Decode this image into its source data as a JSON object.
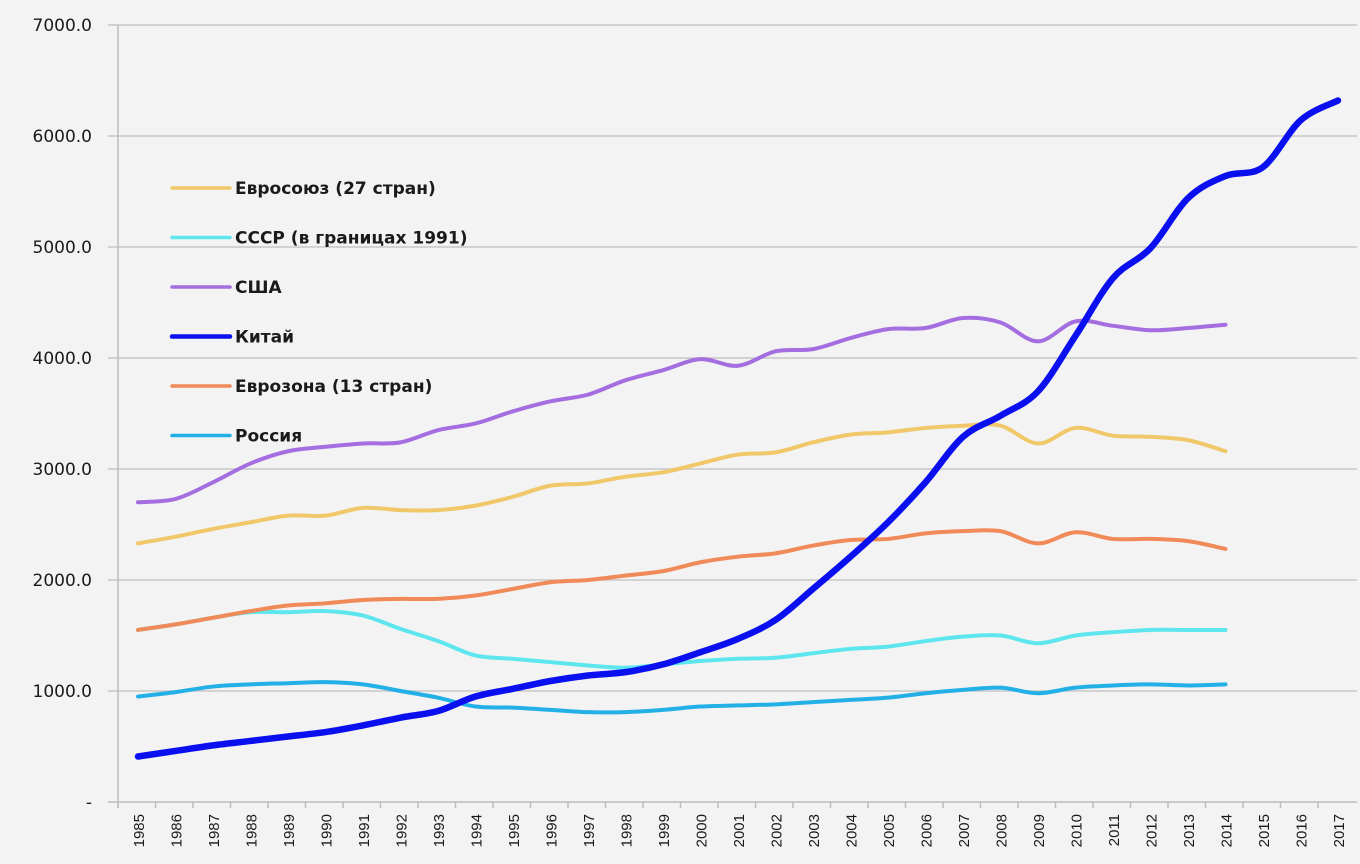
{
  "chart_data": {
    "type": "line",
    "title": "",
    "xlabel": "",
    "ylabel": "",
    "ylim": [
      0,
      7000
    ],
    "y_ticks": [
      "-",
      "1000.0",
      "2000.0",
      "3000.0",
      "4000.0",
      "5000.0",
      "6000.0",
      "7000.0"
    ],
    "y_tick_values": [
      0,
      1000,
      2000,
      3000,
      4000,
      5000,
      6000,
      7000
    ],
    "grid": "horizontal",
    "legend_position": "top-left inside",
    "x": [
      1985,
      1986,
      1987,
      1988,
      1989,
      1990,
      1991,
      1992,
      1993,
      1994,
      1995,
      1996,
      1997,
      1998,
      1999,
      2000,
      2001,
      2002,
      2003,
      2004,
      2005,
      2006,
      2007,
      2008,
      2009,
      2010,
      2011,
      2012,
      2013,
      2014,
      2015,
      2016,
      2017
    ],
    "series": [
      {
        "name": "Евросоюз (27 стран)",
        "color": "#f0c869",
        "values": [
          2330,
          2390,
          2460,
          2520,
          2580,
          2580,
          2650,
          2630,
          2630,
          2670,
          2750,
          2850,
          2870,
          2930,
          2970,
          3050,
          3130,
          3150,
          3240,
          3310,
          3330,
          3370,
          3390,
          3390,
          3230,
          3370,
          3300,
          3290,
          3260,
          3160,
          null,
          null,
          null
        ]
      },
      {
        "name": "СССР (в границах 1991)",
        "color": "#5ee6ee",
        "values": [
          1550,
          1600,
          1660,
          1710,
          1710,
          1720,
          1680,
          1560,
          1450,
          1320,
          1290,
          1260,
          1230,
          1210,
          1240,
          1270,
          1290,
          1300,
          1340,
          1380,
          1400,
          1450,
          1490,
          1500,
          1430,
          1500,
          1530,
          1550,
          1550,
          1550,
          null,
          null,
          null
        ]
      },
      {
        "name": "США",
        "color": "#a56ee0",
        "values": [
          2700,
          2730,
          2880,
          3050,
          3160,
          3200,
          3230,
          3240,
          3350,
          3410,
          3520,
          3610,
          3670,
          3800,
          3890,
          3990,
          3930,
          4060,
          4080,
          4180,
          4260,
          4270,
          4360,
          4320,
          4150,
          4330,
          4290,
          4250,
          4270,
          4300,
          null,
          null,
          null
        ]
      },
      {
        "name": "Китай",
        "color": "#0a0ff0",
        "values": [
          410,
          460,
          510,
          550,
          590,
          630,
          690,
          760,
          820,
          950,
          1020,
          1090,
          1140,
          1170,
          1240,
          1350,
          1470,
          1640,
          1920,
          2210,
          2520,
          2880,
          3290,
          3480,
          3700,
          4200,
          4720,
          4990,
          5440,
          5640,
          5720,
          6140,
          6320
        ]
      },
      {
        "name": "Еврозона (13 стран)",
        "color": "#f08a58",
        "values": [
          1550,
          1600,
          1660,
          1720,
          1770,
          1790,
          1820,
          1830,
          1830,
          1860,
          1920,
          1980,
          2000,
          2040,
          2080,
          2160,
          2210,
          2240,
          2310,
          2360,
          2370,
          2420,
          2440,
          2440,
          2330,
          2430,
          2370,
          2370,
          2350,
          2280,
          null,
          null,
          null
        ]
      },
      {
        "name": "Россия",
        "color": "#22b0e6",
        "values": [
          950,
          990,
          1040,
          1060,
          1070,
          1080,
          1060,
          1000,
          940,
          860,
          850,
          830,
          810,
          810,
          830,
          860,
          870,
          880,
          900,
          920,
          940,
          980,
          1010,
          1030,
          980,
          1030,
          1050,
          1060,
          1050,
          1060,
          null,
          null,
          null
        ]
      }
    ]
  }
}
